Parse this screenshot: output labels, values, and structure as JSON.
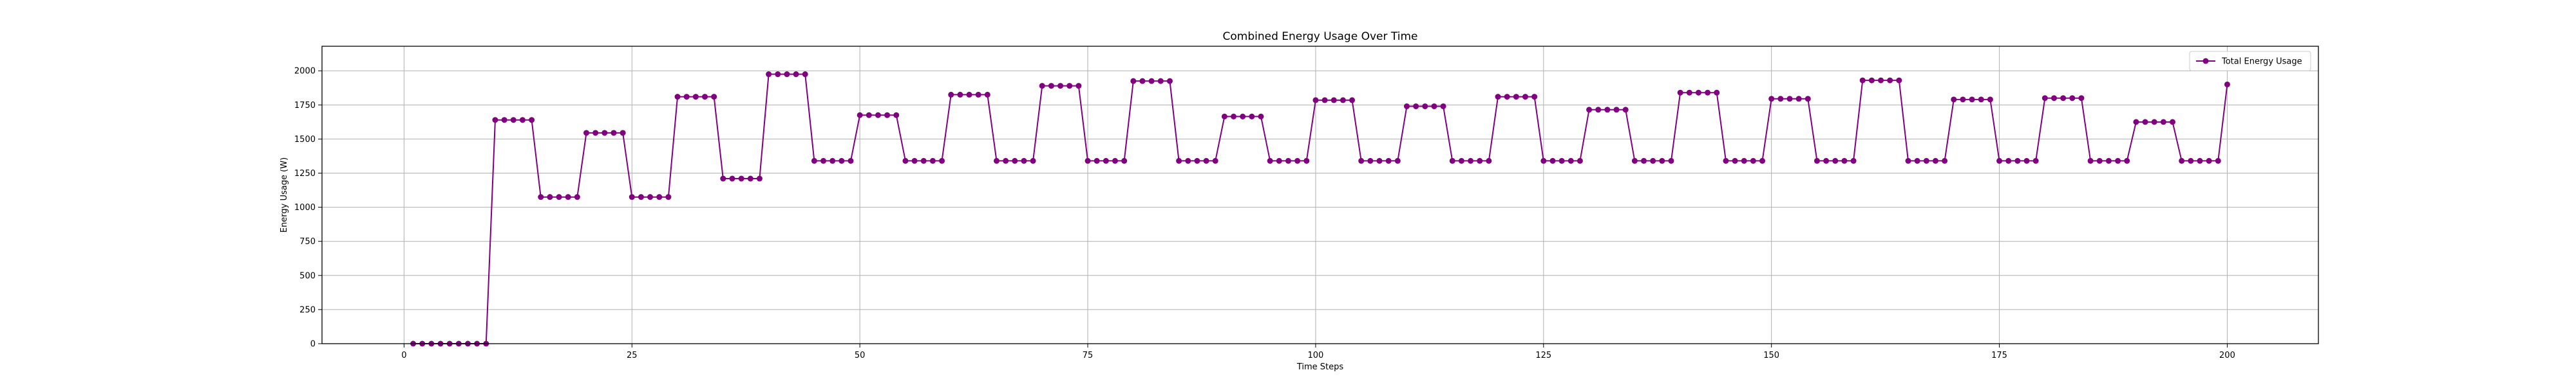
{
  "chart_data": {
    "type": "line",
    "title": "Combined Energy Usage Over Time",
    "xlabel": "Time Steps",
    "ylabel": "Energy Usage (W)",
    "xlim": [
      -9,
      210
    ],
    "ylim": [
      0,
      2180
    ],
    "x_ticks": [
      0,
      25,
      50,
      75,
      100,
      125,
      150,
      175,
      200
    ],
    "y_ticks": [
      0,
      250,
      500,
      750,
      1000,
      1250,
      1500,
      1750,
      2000
    ],
    "grid": true,
    "legend_position": "top-right",
    "series": [
      {
        "name": "Total Energy Usage",
        "color": "#800080",
        "marker": "circle",
        "x": [
          1,
          2,
          3,
          4,
          5,
          6,
          7,
          8,
          9,
          10,
          11,
          12,
          13,
          14,
          15,
          16,
          17,
          18,
          19,
          20,
          21,
          22,
          23,
          24,
          25,
          26,
          27,
          28,
          29,
          30,
          31,
          32,
          33,
          34,
          35,
          36,
          37,
          38,
          39,
          40,
          41,
          42,
          43,
          44,
          45,
          46,
          47,
          48,
          49,
          50,
          51,
          52,
          53,
          54,
          55,
          56,
          57,
          58,
          59,
          60,
          61,
          62,
          63,
          64,
          65,
          66,
          67,
          68,
          69,
          70,
          71,
          72,
          73,
          74,
          75,
          76,
          77,
          78,
          79,
          80,
          81,
          82,
          83,
          84,
          85,
          86,
          87,
          88,
          89,
          90,
          91,
          92,
          93,
          94,
          95,
          96,
          97,
          98,
          99,
          100,
          101,
          102,
          103,
          104,
          105,
          106,
          107,
          108,
          109,
          110,
          111,
          112,
          113,
          114,
          115,
          116,
          117,
          118,
          119,
          120,
          121,
          122,
          123,
          124,
          125,
          126,
          127,
          128,
          129,
          130,
          131,
          132,
          133,
          134,
          135,
          136,
          137,
          138,
          139,
          140,
          141,
          142,
          143,
          144,
          145,
          146,
          147,
          148,
          149,
          150,
          151,
          152,
          153,
          154,
          155,
          156,
          157,
          158,
          159,
          160,
          161,
          162,
          163,
          164,
          165,
          166,
          167,
          168,
          169,
          170,
          171,
          172,
          173,
          174,
          175,
          176,
          177,
          178,
          179,
          180,
          181,
          182,
          183,
          184,
          185,
          186,
          187,
          188,
          189,
          190,
          191,
          192,
          193,
          194,
          195,
          196,
          197,
          198,
          199,
          200
        ],
        "values": [
          0,
          0,
          0,
          0,
          0,
          0,
          0,
          0,
          0,
          1640,
          1640,
          1640,
          1640,
          1640,
          1075,
          1075,
          1075,
          1075,
          1075,
          1545,
          1545,
          1545,
          1545,
          1545,
          1075,
          1075,
          1075,
          1075,
          1075,
          1810,
          1810,
          1810,
          1810,
          1810,
          1210,
          1210,
          1210,
          1210,
          1210,
          1975,
          1975,
          1975,
          1975,
          1975,
          1340,
          1340,
          1340,
          1340,
          1340,
          1675,
          1675,
          1675,
          1675,
          1675,
          1340,
          1340,
          1340,
          1340,
          1340,
          1825,
          1825,
          1825,
          1825,
          1825,
          1340,
          1340,
          1340,
          1340,
          1340,
          1890,
          1890,
          1890,
          1890,
          1890,
          1340,
          1340,
          1340,
          1340,
          1340,
          1925,
          1925,
          1925,
          1925,
          1925,
          1340,
          1340,
          1340,
          1340,
          1340,
          1665,
          1665,
          1665,
          1665,
          1665,
          1340,
          1340,
          1340,
          1340,
          1340,
          1785,
          1785,
          1785,
          1785,
          1785,
          1340,
          1340,
          1340,
          1340,
          1340,
          1740,
          1740,
          1740,
          1740,
          1740,
          1340,
          1340,
          1340,
          1340,
          1340,
          1810,
          1810,
          1810,
          1810,
          1810,
          1340,
          1340,
          1340,
          1340,
          1340,
          1715,
          1715,
          1715,
          1715,
          1715,
          1340,
          1340,
          1340,
          1340,
          1340,
          1840,
          1840,
          1840,
          1840,
          1840,
          1340,
          1340,
          1340,
          1340,
          1340,
          1795,
          1795,
          1795,
          1795,
          1795,
          1340,
          1340,
          1340,
          1340,
          1340,
          1930,
          1930,
          1930,
          1930,
          1930,
          1340,
          1340,
          1340,
          1340,
          1340,
          1790,
          1790,
          1790,
          1790,
          1790,
          1340,
          1340,
          1340,
          1340,
          1340,
          1800,
          1800,
          1800,
          1800,
          1800,
          1340,
          1340,
          1340,
          1340,
          1340,
          1625,
          1625,
          1625,
          1625,
          1625,
          1340,
          1340,
          1340,
          1340,
          1340,
          1900
        ]
      }
    ]
  }
}
